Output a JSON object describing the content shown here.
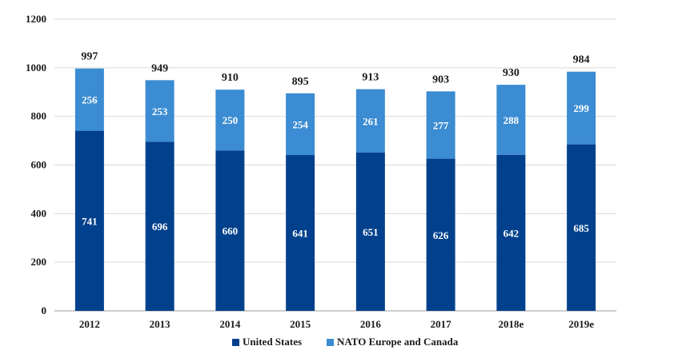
{
  "chart_data": {
    "type": "bar",
    "stacked": true,
    "categories": [
      "2012",
      "2013",
      "2014",
      "2015",
      "2016",
      "2017",
      "2018e",
      "2019e"
    ],
    "series": [
      {
        "name": "United States",
        "color": "#00408c",
        "values": [
          741,
          696,
          660,
          641,
          651,
          626,
          642,
          685
        ]
      },
      {
        "name": "NATO Europe and Canada",
        "color": "#3b8cd2",
        "values": [
          256,
          253,
          250,
          254,
          261,
          277,
          288,
          299
        ]
      }
    ],
    "totals": [
      997,
      949,
      910,
      895,
      913,
      903,
      930,
      984
    ],
    "ylim": [
      0,
      1200
    ],
    "yticks": [
      0,
      200,
      400,
      600,
      800,
      1000,
      1200
    ],
    "grid": true,
    "legend": "bottom-center",
    "title": "",
    "xlabel": "",
    "ylabel": ""
  }
}
